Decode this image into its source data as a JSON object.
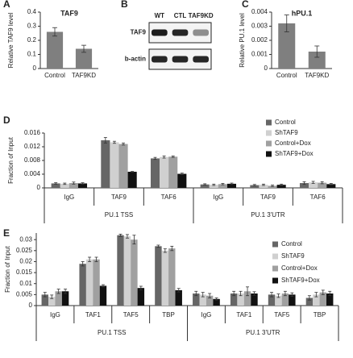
{
  "chart_data": [
    {
      "panel": "A",
      "type": "bar",
      "title": "TAF9",
      "y_label": "Relative TAF9 level",
      "categories": [
        "Control",
        "TAF9KD"
      ],
      "values": [
        0.26,
        0.14
      ],
      "errors": [
        0.03,
        0.025
      ],
      "color": "#7f7f7f",
      "ylim": [
        0,
        0.4
      ],
      "yticks": [
        0,
        0.1,
        0.2,
        0.3,
        0.4
      ]
    },
    {
      "panel": "B",
      "type": "blot",
      "lanes": [
        "WT",
        "CTL",
        "TAF9KD"
      ],
      "rows": [
        "TAF9",
        "b-actin"
      ]
    },
    {
      "panel": "C",
      "type": "bar",
      "title": "hPU.1",
      "y_label": "Relative PU.1 level",
      "categories": [
        "Control",
        "TAF9KD"
      ],
      "values": [
        0.0032,
        0.0012
      ],
      "errors": [
        0.0006,
        0.0004
      ],
      "color": "#7f7f7f",
      "ylim": [
        0,
        0.004
      ],
      "yticks": [
        0,
        0.001,
        0.002,
        0.003,
        0.004
      ]
    },
    {
      "panel": "D",
      "type": "grouped_bar",
      "y_label": "Fraction of Input",
      "categories": [
        "IgG",
        "TAF9",
        "TAF6",
        "IgG",
        "TAF9",
        "TAF6"
      ],
      "groups": [
        "PU.1 TSS",
        "PU.1 3'UTR"
      ],
      "series": [
        {
          "name": "Control",
          "color": "#666666",
          "values": [
            0.0013,
            0.0139,
            0.0086,
            0.001,
            0.0008,
            0.0014
          ],
          "errors": [
            0.0002,
            0.0008,
            0.0003,
            0.0002,
            0.0002,
            0.0004
          ]
        },
        {
          "name": "ShTAF9",
          "color": "#d0d0d0",
          "values": [
            0.0012,
            0.0133,
            0.009,
            0.0009,
            0.0009,
            0.0016
          ],
          "errors": [
            0.0002,
            0.0003,
            0.0003,
            0.0002,
            0.0002,
            0.0003
          ]
        },
        {
          "name": "Control+Dox",
          "color": "#a0a0a0",
          "values": [
            0.0014,
            0.0128,
            0.0091,
            0.0011,
            0.0006,
            0.0015
          ],
          "errors": [
            0.0003,
            0.0003,
            0.0002,
            0.0002,
            0.0002,
            0.0003
          ]
        },
        {
          "name": "ShTAF9+Dox",
          "color": "#111111",
          "values": [
            0.0013,
            0.0047,
            0.0041,
            0.0012,
            0.0009,
            0.0011
          ],
          "errors": [
            0.0002,
            0.0001,
            0.0002,
            0.0002,
            0.0002,
            0.0002
          ]
        }
      ],
      "ylim": [
        0,
        0.016
      ],
      "yticks": [
        0,
        0.004,
        0.008,
        0.012,
        0.016
      ],
      "legend": "upper right"
    },
    {
      "panel": "E",
      "type": "grouped_bar",
      "y_label": "Fraction of Input",
      "categories": [
        "IgG",
        "TAF1",
        "TAF5",
        "TBP",
        "IgG",
        "TAF1",
        "TAF5",
        "TBP"
      ],
      "groups": [
        "PU.1 TSS",
        "PU.1 3'UTR"
      ],
      "series": [
        {
          "name": "Control",
          "color": "#666666",
          "values": [
            0.005,
            0.019,
            0.032,
            0.027,
            0.0055,
            0.0055,
            0.005,
            0.0035
          ],
          "errors": [
            0.001,
            0.001,
            0.0005,
            0.0005,
            0.001,
            0.001,
            0.001,
            0.001
          ]
        },
        {
          "name": "ShTAF9",
          "color": "#d0d0d0",
          "values": [
            0.004,
            0.021,
            0.0315,
            0.025,
            0.005,
            0.0055,
            0.0045,
            0.005
          ],
          "errors": [
            0.0008,
            0.001,
            0.0008,
            0.0008,
            0.001,
            0.001,
            0.0008,
            0.001
          ]
        },
        {
          "name": "Control+Dox",
          "color": "#a0a0a0",
          "values": [
            0.0065,
            0.021,
            0.03,
            0.026,
            0.0045,
            0.0065,
            0.0055,
            0.006
          ],
          "errors": [
            0.001,
            0.001,
            0.002,
            0.001,
            0.001,
            0.002,
            0.001,
            0.001
          ]
        },
        {
          "name": "ShTAF9+Dox",
          "color": "#111111",
          "values": [
            0.0065,
            0.009,
            0.008,
            0.007,
            0.003,
            0.0055,
            0.005,
            0.0055
          ],
          "errors": [
            0.001,
            0.0005,
            0.0008,
            0.0008,
            0.0005,
            0.0008,
            0.0008,
            0.001
          ]
        }
      ],
      "ylim": [
        0,
        0.033
      ],
      "yticks": [
        0,
        0.005,
        0.01,
        0.015,
        0.02,
        0.025,
        0.03
      ],
      "legend": "upper right"
    }
  ]
}
